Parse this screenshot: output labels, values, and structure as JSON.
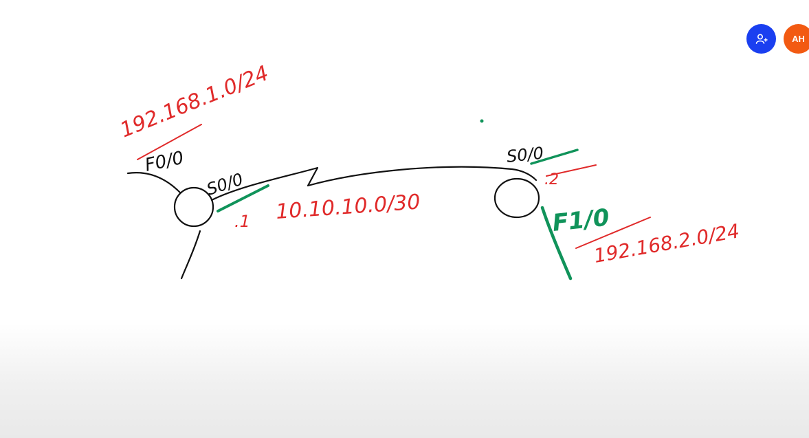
{
  "colors": {
    "ink": "#111111",
    "red": "#e02a2a",
    "green": "#10935a",
    "share_avatar": "#1a3ff0",
    "user_avatar": "#f25a12"
  },
  "avatars": {
    "share_icon": "add-person-icon",
    "user_initials": "AH"
  },
  "drawing": {
    "left_lan": "192.168.1.0/24",
    "left_lan_interface": "F0/0",
    "left_serial_interface": "S0/0",
    "left_host": ".1",
    "wan_network": "10.10.10.0/30",
    "right_serial_interface": "S0/0",
    "right_host": ".2",
    "right_lan_interface": "F1/0",
    "right_lan": "192.168.2.0/24"
  }
}
